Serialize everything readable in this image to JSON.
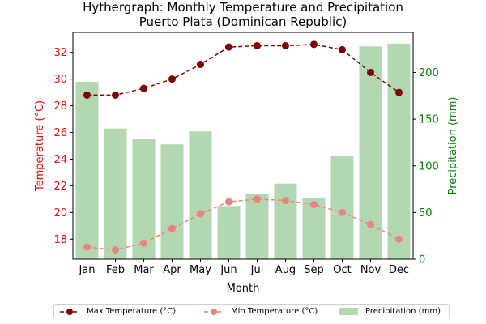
{
  "chart_data": {
    "type": "bar+line",
    "title": "Hythergraph: Monthly Temperature and Precipitation",
    "subtitle": "Puerto Plata (Dominican Republic)",
    "xlabel": "Month",
    "ylabel_left": "Temperature (°C)",
    "ylabel_right": "Precipitation (mm)",
    "categories": [
      "Jan",
      "Feb",
      "Mar",
      "Apr",
      "May",
      "Jun",
      "Jul",
      "Aug",
      "Sep",
      "Oct",
      "Nov",
      "Dec"
    ],
    "ylim_left": [
      16.5,
      33.5
    ],
    "yticks_left": [
      18,
      20,
      22,
      24,
      26,
      28,
      30,
      32
    ],
    "ylim_right": [
      0,
      243
    ],
    "yticks_right": [
      0,
      50,
      100,
      150,
      200
    ],
    "series": [
      {
        "name": "Max Temperature (°C)",
        "axis": "left",
        "kind": "line",
        "style": "dashed",
        "marker": "circle",
        "color": "#800000",
        "values": [
          28.8,
          28.8,
          29.3,
          30.0,
          31.1,
          32.4,
          32.5,
          32.5,
          32.6,
          32.2,
          30.5,
          29.0
        ]
      },
      {
        "name": "Min Temperature (°C)",
        "axis": "left",
        "kind": "line",
        "style": "dashed",
        "marker": "circle",
        "color": "#f08080",
        "values": [
          17.4,
          17.2,
          17.7,
          18.8,
          19.9,
          20.8,
          21.0,
          20.9,
          20.6,
          20.0,
          19.1,
          18.0
        ]
      },
      {
        "name": "Precipitation (mm)",
        "axis": "right",
        "kind": "bar",
        "color": "#b2d8b2",
        "values": [
          190,
          140,
          129,
          123,
          137,
          57,
          70,
          81,
          66,
          111,
          228,
          231
        ]
      }
    ],
    "left_axis_color": "#ff0000",
    "right_axis_color": "#008000",
    "legend_position": "bottom-center"
  }
}
